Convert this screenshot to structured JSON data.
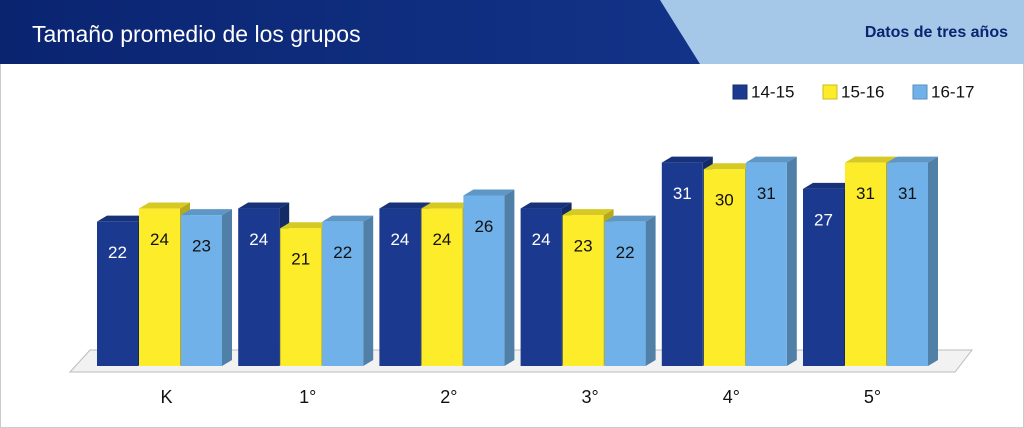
{
  "header": {
    "title": "Tamaño promedio de los grupos",
    "tab": "Datos de tres años"
  },
  "chart_data": {
    "type": "bar",
    "categories": [
      "K",
      "1°",
      "2°",
      "3°",
      "4°",
      "5°"
    ],
    "series": [
      {
        "name": "14-15",
        "color": "#1b3a8f",
        "values": [
          22,
          24,
          24,
          24,
          31,
          27
        ]
      },
      {
        "name": "15-16",
        "color": "#fcec2a",
        "values": [
          24,
          21,
          24,
          23,
          30,
          31
        ]
      },
      {
        "name": "16-17",
        "color": "#6fb1e8",
        "values": [
          23,
          22,
          26,
          22,
          31,
          31
        ]
      }
    ],
    "legend": "top-right"
  }
}
